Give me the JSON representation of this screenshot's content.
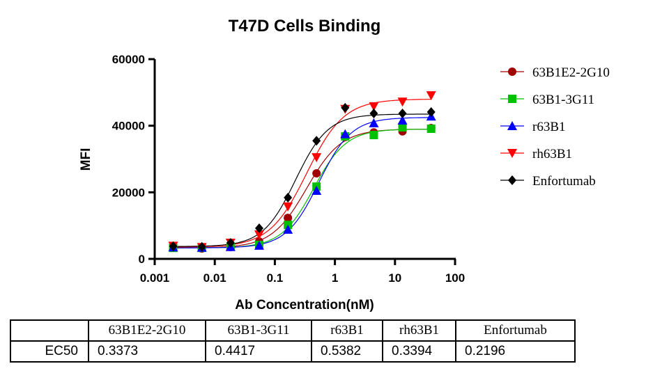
{
  "chart_data": {
    "type": "scatter",
    "title": "T47D Cells Binding",
    "xlabel": "Ab Concentration(nM)",
    "ylabel": "MFI",
    "xscale": "log",
    "xlim": [
      0.001,
      100
    ],
    "ylim": [
      0,
      60000
    ],
    "xticks": [
      "0.001",
      "0.01",
      "0.1",
      "1",
      "10",
      "100"
    ],
    "yticks": [
      "0",
      "20000",
      "40000",
      "60000"
    ],
    "grid": false,
    "legend_position": "right",
    "x": [
      0.00203,
      0.0061,
      0.0183,
      0.0549,
      0.165,
      0.494,
      1.48,
      4.44,
      13.33,
      40
    ],
    "series": [
      {
        "name": "63B1E2-2G10",
        "color": "#A00000",
        "marker": "circle",
        "values": [
          3350,
          3100,
          3550,
          5200,
          12300,
          25700,
          36600,
          38000,
          38300,
          39300
        ],
        "fit": {
          "bottom": 3300,
          "top": 39000,
          "ec50": 0.3373,
          "hill": 1.5
        }
      },
      {
        "name": "63B1-3G11",
        "color": "#00C000",
        "marker": "square",
        "values": [
          3300,
          3300,
          3700,
          4200,
          10200,
          21700,
          36800,
          37200,
          39500,
          39100
        ],
        "fit": {
          "bottom": 3300,
          "top": 39000,
          "ec50": 0.4417,
          "hill": 1.6
        }
      },
      {
        "name": "r63B1",
        "color": "#0000FF",
        "marker": "triangle-up",
        "values": [
          3500,
          3400,
          3600,
          4000,
          8800,
          20500,
          37500,
          40800,
          41600,
          42800
        ],
        "fit": {
          "bottom": 3300,
          "top": 42500,
          "ec50": 0.5382,
          "hill": 1.6
        }
      },
      {
        "name": "rh63B1",
        "color": "#FF0000",
        "marker": "triangle-down",
        "values": [
          3900,
          3500,
          4800,
          7300,
          15700,
          30500,
          45000,
          45800,
          47200,
          49100
        ],
        "fit": {
          "bottom": 3500,
          "top": 48000,
          "ec50": 0.3394,
          "hill": 1.4
        }
      },
      {
        "name": "Enfortumab",
        "color": "#000000",
        "marker": "diamond",
        "values": [
          3800,
          3600,
          4800,
          9200,
          18400,
          35500,
          45400,
          43700,
          43700,
          44100
        ],
        "fit": {
          "bottom": 3700,
          "top": 43500,
          "ec50": 0.2196,
          "hill": 1.6
        }
      }
    ]
  },
  "table": {
    "headers": [
      "",
      "63B1E2-2G10",
      "63B1-3G11",
      "r63B1",
      "rh63B1",
      "Enfortumab"
    ],
    "row_label": "EC50",
    "values": [
      "0.3373",
      "0.4417",
      "0.5382",
      "0.3394",
      "0.2196"
    ]
  }
}
